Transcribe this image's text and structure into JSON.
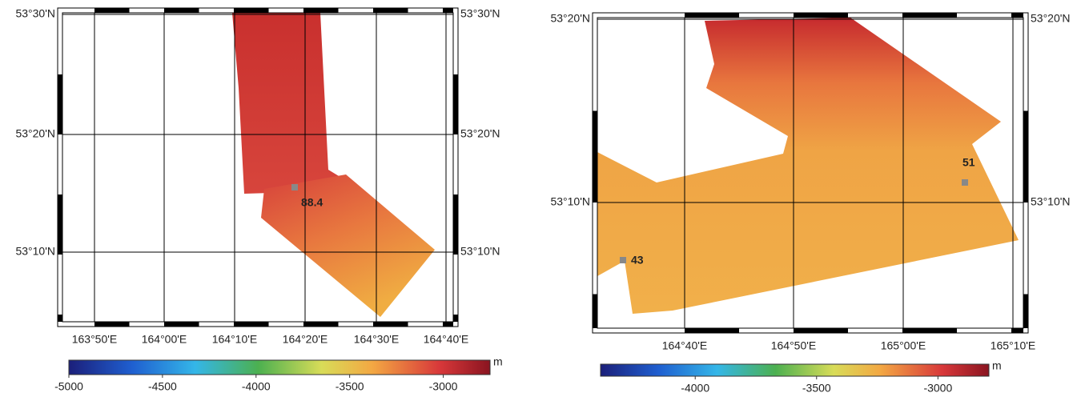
{
  "maps": [
    {
      "lat_labels": [
        "53°30'N",
        "53°20'N",
        "53°10'N"
      ],
      "lon_labels": [
        "163°50'E",
        "164°00'E",
        "164°10'E",
        "164°20'E",
        "164°30'E",
        "164°40'E"
      ],
      "point_labels": [
        88.4
      ],
      "colorbar": {
        "unit": "m",
        "range": [
          -5000,
          -2750
        ],
        "ticks": [
          -5000,
          -4500,
          -4000,
          -3500,
          -3000
        ]
      }
    },
    {
      "lat_labels": [
        "53°20'N",
        "53°10'N"
      ],
      "lon_labels": [
        "164°40'E",
        "164°50'E",
        "165°00'E",
        "165°10'E"
      ],
      "point_labels": [
        51,
        43
      ],
      "colorbar": {
        "unit": "m",
        "range": [
          -4390,
          -2790
        ],
        "ticks": [
          -4000,
          -3500,
          -3000
        ]
      }
    }
  ]
}
